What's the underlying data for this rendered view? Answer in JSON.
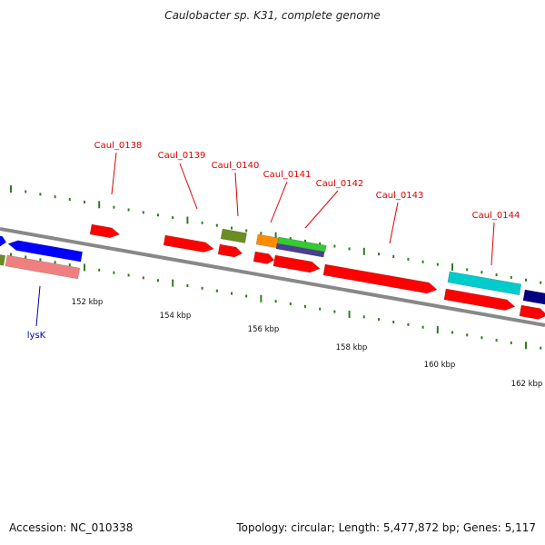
{
  "title": "Caulobacter sp. K31, complete genome",
  "footer": {
    "accession": "Accession: NC_010338",
    "summary": "Topology: circular; Length: 5,477,872 bp; Genes: 5,117"
  },
  "scale": {
    "labels": [
      "152 kbp",
      "154 kbp",
      "156 kbp",
      "158 kbp",
      "160 kbp",
      "162 kbp"
    ],
    "tick_color": "#2e7d1f"
  },
  "genes": [
    {
      "name": "lysK",
      "strand": "minus",
      "color": "#0000aa"
    },
    {
      "name": "Caul_0138",
      "strand": "plus",
      "color": "#dd0000"
    },
    {
      "name": "Caul_0139",
      "strand": "plus",
      "color": "#dd0000"
    },
    {
      "name": "Caul_0140",
      "strand": "plus",
      "color": "#dd0000"
    },
    {
      "name": "Caul_0141",
      "strand": "plus",
      "color": "#dd0000"
    },
    {
      "name": "Caul_0142",
      "strand": "plus",
      "color": "#dd0000"
    },
    {
      "name": "Caul_0143",
      "strand": "plus",
      "color": "#dd0000"
    },
    {
      "name": "Caul_0144",
      "strand": "plus",
      "color": "#dd0000"
    }
  ],
  "colors": {
    "backbone": "#888888",
    "cds": "#ff0000",
    "blue": "#0000ff",
    "pink": "#f08080",
    "olive": "#6b8e23",
    "orange": "#ff8c00",
    "green": "#33cc33",
    "purple": "#4b3f8f",
    "cyan": "#00cccc",
    "navy": "#000080",
    "label_red": "#dd0000",
    "label_blue": "#0000aa"
  }
}
